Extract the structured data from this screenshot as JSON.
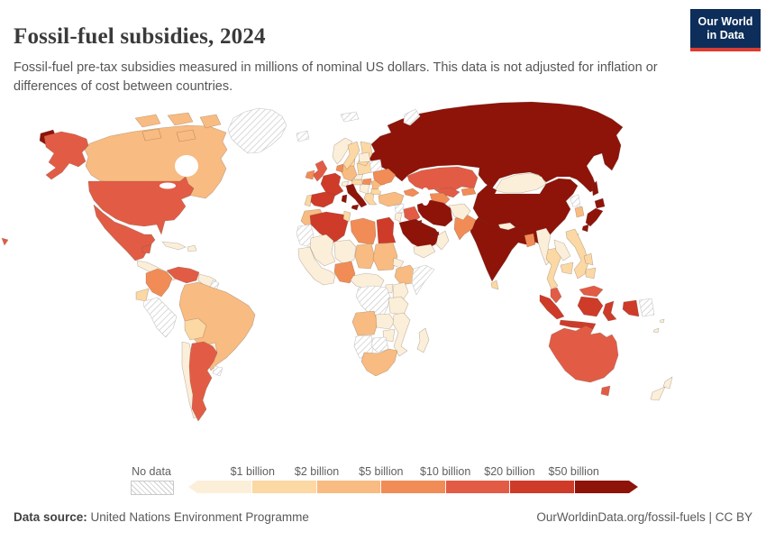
{
  "header": {
    "title": "Fossil-fuel subsidies, 2024",
    "subtitle": "Fossil-fuel pre-tax subsidies measured in millions of nominal US dollars. This data is not adjusted for inflation or differences of cost between countries.",
    "logo": {
      "line1": "Our World",
      "line2": "in Data",
      "bg_color": "#0d2e5a",
      "accent_color": "#dc3c32"
    }
  },
  "footer": {
    "source_label": "Data source:",
    "source_value": "United Nations Environment Programme",
    "right_text": "OurWorldinData.org/fossil-fuels | CC BY"
  },
  "legend": {
    "no_data_label": "No data",
    "no_data_style": "diagonal-hatch"
  },
  "chart_data": {
    "type": "choropleth-map",
    "title": "Fossil-fuel subsidies, 2024",
    "unit": "millions of nominal US dollars",
    "year": 2024,
    "projection": "world",
    "legend_thresholds": [
      "$1 billion",
      "$2 billion",
      "$5 billion",
      "$10 billion",
      "$20 billion",
      "$50 billion"
    ],
    "bands": [
      {
        "label": "< $1 billion",
        "color": "#FCEFD9"
      },
      {
        "label": "$1-2 billion",
        "color": "#FBD8A4"
      },
      {
        "label": "$2-5 billion",
        "color": "#F8BB81"
      },
      {
        "label": "$5-10 billion",
        "color": "#F28C56"
      },
      {
        "label": "$10-20 billion",
        "color": "#E25C45"
      },
      {
        "label": "$20-50 billion",
        "color": "#CE3B28"
      },
      {
        "label": "> $50 billion",
        "color": "#8E1309"
      }
    ],
    "no_data": {
      "label": "No data",
      "style": "hatched"
    },
    "countries": [
      {
        "name": "Russia",
        "band": 7
      },
      {
        "name": "China",
        "band": 7
      },
      {
        "name": "India",
        "band": 7
      },
      {
        "name": "Iran",
        "band": 7
      },
      {
        "name": "Saudi Arabia",
        "band": 7
      },
      {
        "name": "Kuwait",
        "band": 7
      },
      {
        "name": "United Arab Emirates",
        "band": 7
      },
      {
        "name": "Italy",
        "band": 7
      },
      {
        "name": "Japan",
        "band": 7
      },
      {
        "name": "France",
        "band": 6
      },
      {
        "name": "Spain",
        "band": 6
      },
      {
        "name": "Algeria",
        "band": 6
      },
      {
        "name": "Egypt",
        "band": 6
      },
      {
        "name": "Indonesia",
        "band": 6
      },
      {
        "name": "United States",
        "band": 5
      },
      {
        "name": "Mexico",
        "band": 5
      },
      {
        "name": "Venezuela",
        "band": 5
      },
      {
        "name": "Argentina",
        "band": 5
      },
      {
        "name": "United Kingdom",
        "band": 5
      },
      {
        "name": "Kazakhstan",
        "band": 5
      },
      {
        "name": "Uzbekistan",
        "band": 5
      },
      {
        "name": "Iraq",
        "band": 5
      },
      {
        "name": "Malaysia",
        "band": 5
      },
      {
        "name": "Australia",
        "band": 5
      },
      {
        "name": "Colombia",
        "band": 4
      },
      {
        "name": "Ireland",
        "band": 4
      },
      {
        "name": "Netherlands",
        "band": 4
      },
      {
        "name": "Ukraine",
        "band": 4
      },
      {
        "name": "Hungary",
        "band": 4
      },
      {
        "name": "Turkmenistan",
        "band": 4
      },
      {
        "name": "Kyrgyzstan",
        "band": 4
      },
      {
        "name": "Azerbaijan",
        "band": 4
      },
      {
        "name": "Pakistan",
        "band": 4
      },
      {
        "name": "Bangladesh",
        "band": 4
      },
      {
        "name": "Nigeria",
        "band": 4
      },
      {
        "name": "Libya",
        "band": 4
      },
      {
        "name": "Canada",
        "band": 3
      },
      {
        "name": "Brazil",
        "band": 3
      },
      {
        "name": "Germany",
        "band": 3
      },
      {
        "name": "Romania",
        "band": 3
      },
      {
        "name": "Turkey",
        "band": 3
      },
      {
        "name": "Morocco",
        "band": 3
      },
      {
        "name": "Chad",
        "band": 3
      },
      {
        "name": "Sudan",
        "band": 3
      },
      {
        "name": "Ethiopia",
        "band": 3
      },
      {
        "name": "Angola",
        "band": 3
      },
      {
        "name": "South Africa",
        "band": 3
      },
      {
        "name": "South Korea",
        "band": 3
      },
      {
        "name": "Ecuador",
        "band": 2
      },
      {
        "name": "Bolivia",
        "band": 2
      },
      {
        "name": "Portugal",
        "band": 2
      },
      {
        "name": "Sweden",
        "band": 2
      },
      {
        "name": "Finland",
        "band": 2
      },
      {
        "name": "Denmark",
        "band": 2
      },
      {
        "name": "Poland",
        "band": 2
      },
      {
        "name": "Austria",
        "band": 2
      },
      {
        "name": "Bulgaria",
        "band": 2
      },
      {
        "name": "Greece",
        "band": 2
      },
      {
        "name": "Tunisia",
        "band": 2
      },
      {
        "name": "Sri Lanka",
        "band": 2
      },
      {
        "name": "Thailand",
        "band": 2
      },
      {
        "name": "Cambodia",
        "band": 2
      },
      {
        "name": "Vietnam",
        "band": 2
      },
      {
        "name": "Philippines",
        "band": 2
      },
      {
        "name": "Paraguay",
        "band": 1
      },
      {
        "name": "Chile",
        "band": 1
      },
      {
        "name": "Guyana",
        "band": 1
      },
      {
        "name": "Cuba",
        "band": 1
      },
      {
        "name": "Dominican Republic",
        "band": 1
      },
      {
        "name": "Guatemala",
        "band": 1
      },
      {
        "name": "Norway",
        "band": 1
      },
      {
        "name": "Switzerland",
        "band": 1
      },
      {
        "name": "Czechia",
        "band": 1
      },
      {
        "name": "Serbia",
        "band": 1
      },
      {
        "name": "Baltic states",
        "band": 1
      },
      {
        "name": "Mali",
        "band": 1
      },
      {
        "name": "Niger",
        "band": 1
      },
      {
        "name": "Senegal",
        "band": 1
      },
      {
        "name": "Cameroon",
        "band": 1
      },
      {
        "name": "Kenya",
        "band": 1
      },
      {
        "name": "Uganda",
        "band": 1
      },
      {
        "name": "Tanzania",
        "band": 1
      },
      {
        "name": "Zambia",
        "band": 1
      },
      {
        "name": "Mozambique",
        "band": 1
      },
      {
        "name": "Zimbabwe",
        "band": 1
      },
      {
        "name": "Madagascar",
        "band": 1
      },
      {
        "name": "Eritrea",
        "band": 1
      },
      {
        "name": "Yemen",
        "band": 1
      },
      {
        "name": "Oman",
        "band": 1
      },
      {
        "name": "Jordan",
        "band": 1
      },
      {
        "name": "Afghanistan",
        "band": 1
      },
      {
        "name": "Nepal",
        "band": 1
      },
      {
        "name": "Myanmar",
        "band": 1
      },
      {
        "name": "Laos",
        "band": 1
      },
      {
        "name": "Mongolia",
        "band": 1
      },
      {
        "name": "New Zealand",
        "band": 1
      },
      {
        "name": "Fiji",
        "band": 1
      },
      {
        "name": "New Caledonia",
        "band": 1
      },
      {
        "name": "Greenland",
        "band": 0
      },
      {
        "name": "Iceland",
        "band": 0
      },
      {
        "name": "Svalbard",
        "band": 0
      },
      {
        "name": "Novaya Zemlya",
        "band": 0
      },
      {
        "name": "Peru",
        "band": 0
      },
      {
        "name": "Uruguay",
        "band": 0
      },
      {
        "name": "Suriname",
        "band": 0
      },
      {
        "name": "Belarus",
        "band": 0
      },
      {
        "name": "Mauritania",
        "band": 0
      },
      {
        "name": "Somalia",
        "band": 0
      },
      {
        "name": "Democratic Republic of Congo",
        "band": 0
      },
      {
        "name": "Namibia",
        "band": 0
      },
      {
        "name": "Botswana",
        "band": 0
      },
      {
        "name": "Syria",
        "band": 0
      },
      {
        "name": "North Korea",
        "band": 0
      },
      {
        "name": "Taiwan",
        "band": 0
      },
      {
        "name": "Papua New Guinea",
        "band": 0
      }
    ]
  }
}
